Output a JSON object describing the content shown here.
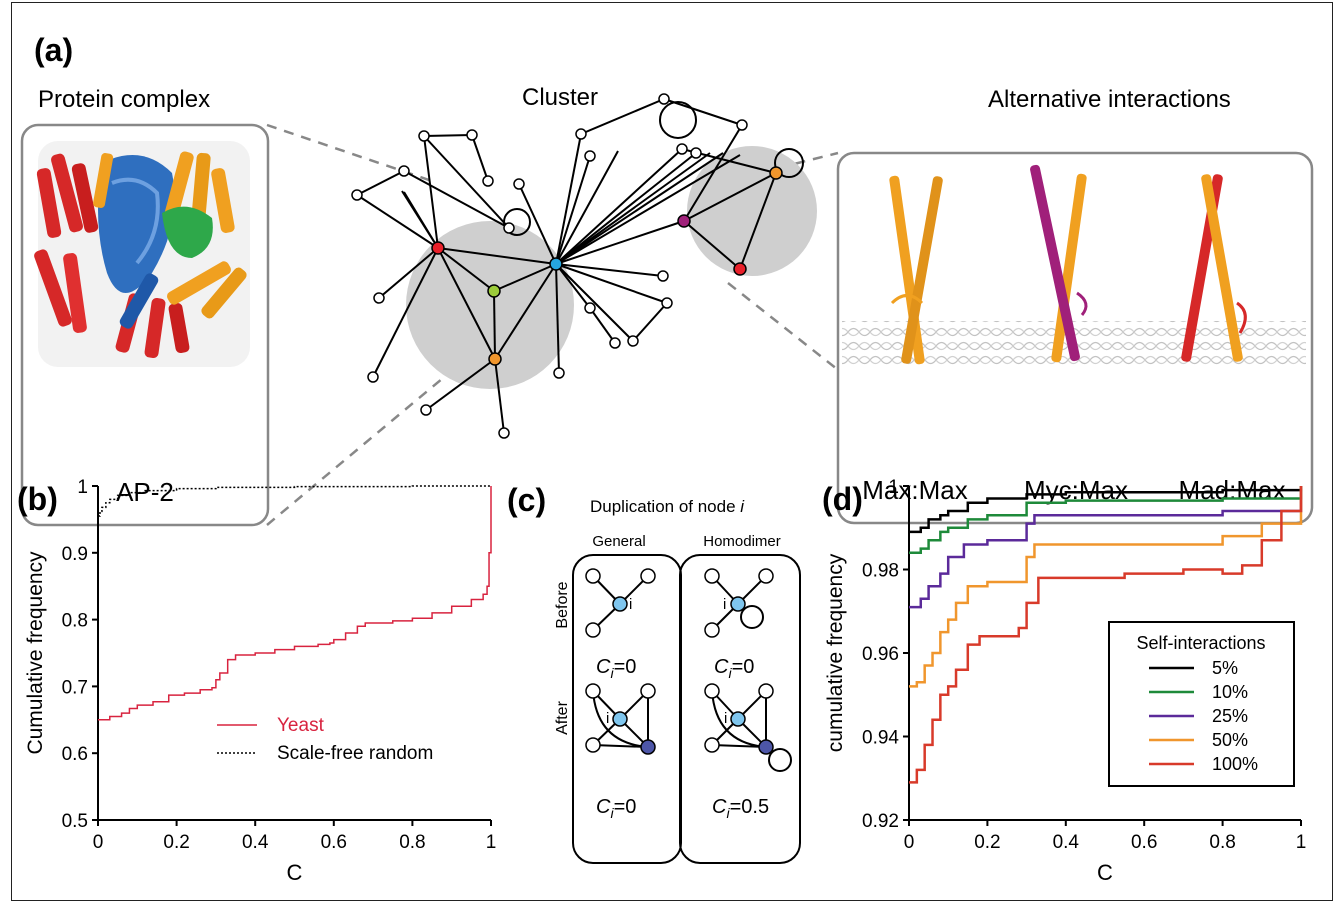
{
  "panel_a": {
    "label": "(a)",
    "left_title": "Protein complex",
    "center_title": "Cluster",
    "right_title": "Alternative interactions",
    "complex_name": "AP-2",
    "alt_labels": [
      "Max:Max",
      "Myc:Max",
      "Mad:Max"
    ]
  },
  "panel_c": {
    "label": "(c)",
    "title": "Duplication of node ",
    "title_var": "i",
    "col_general": "General",
    "col_homodimer": "Homodimer",
    "row_before": "Before",
    "row_after": "After",
    "node_label": "i",
    "c_general_before": "=0",
    "c_homodimer_before": "=0",
    "c_general_after": "=0",
    "c_homodimer_after": "=0.5",
    "c_symbol": "C",
    "c_sub": "i"
  },
  "chart_data": [
    {
      "panel": "(b)",
      "type": "line",
      "xlabel": "C",
      "ylabel": "Cumulative frequency",
      "xlim": [
        0,
        1
      ],
      "ylim": [
        0.5,
        1
      ],
      "xticks": [
        "0",
        "0.2",
        "0.4",
        "0.6",
        "0.8",
        "1"
      ],
      "yticks": [
        "0.5",
        "0.6",
        "0.7",
        "0.8",
        "0.9",
        "1"
      ],
      "legend_position": "bottom-right",
      "series": [
        {
          "name": "Yeast",
          "color": "#d8233f",
          "style": "solid",
          "points": [
            [
              0,
              0.65
            ],
            [
              0.03,
              0.655
            ],
            [
              0.06,
              0.66
            ],
            [
              0.08,
              0.667
            ],
            [
              0.1,
              0.672
            ],
            [
              0.14,
              0.677
            ],
            [
              0.18,
              0.687
            ],
            [
              0.22,
              0.69
            ],
            [
              0.26,
              0.695
            ],
            [
              0.29,
              0.698
            ],
            [
              0.3,
              0.71
            ],
            [
              0.31,
              0.72
            ],
            [
              0.33,
              0.74
            ],
            [
              0.35,
              0.747
            ],
            [
              0.4,
              0.75
            ],
            [
              0.45,
              0.755
            ],
            [
              0.5,
              0.76
            ],
            [
              0.56,
              0.763
            ],
            [
              0.59,
              0.765
            ],
            [
              0.6,
              0.77
            ],
            [
              0.63,
              0.78
            ],
            [
              0.66,
              0.79
            ],
            [
              0.68,
              0.795
            ],
            [
              0.75,
              0.798
            ],
            [
              0.8,
              0.802
            ],
            [
              0.85,
              0.81
            ],
            [
              0.9,
              0.82
            ],
            [
              0.95,
              0.83
            ],
            [
              0.98,
              0.838
            ],
            [
              0.99,
              0.85
            ],
            [
              0.995,
              0.9
            ],
            [
              1.0,
              1.0
            ]
          ]
        },
        {
          "name": "Scale-free random",
          "color": "#000000",
          "style": "dotted",
          "points": [
            [
              0,
              0.955
            ],
            [
              0.005,
              0.962
            ],
            [
              0.01,
              0.968
            ],
            [
              0.02,
              0.975
            ],
            [
              0.03,
              0.98
            ],
            [
              0.05,
              0.986
            ],
            [
              0.08,
              0.99
            ],
            [
              0.12,
              0.993
            ],
            [
              0.2,
              0.996
            ],
            [
              0.3,
              0.998
            ],
            [
              0.5,
              0.999
            ],
            [
              0.8,
              1.0
            ],
            [
              1.0,
              1.0
            ]
          ]
        }
      ]
    },
    {
      "panel": "(d)",
      "type": "line",
      "xlabel": "C",
      "ylabel": "cumulative frequency",
      "xlim": [
        0,
        1
      ],
      "ylim": [
        0.92,
        1
      ],
      "xticks": [
        "0",
        "0.2",
        "0.4",
        "0.6",
        "0.8",
        "1"
      ],
      "yticks": [
        "0.92",
        "0.94",
        "0.96",
        "0.98",
        "1"
      ],
      "legend_title": "Self-interactions",
      "legend_position": "bottom-right",
      "series": [
        {
          "name": "5%",
          "color": "#000000",
          "points": [
            [
              0,
              0.989
            ],
            [
              0.03,
              0.99
            ],
            [
              0.05,
              0.992
            ],
            [
              0.08,
              0.993
            ],
            [
              0.1,
              0.994
            ],
            [
              0.15,
              0.996
            ],
            [
              0.2,
              0.997
            ],
            [
              0.3,
              0.998
            ],
            [
              0.4,
              0.9985
            ],
            [
              0.6,
              0.9985
            ],
            [
              0.8,
              0.999
            ],
            [
              1.0,
              1.0
            ]
          ]
        },
        {
          "name": "10%",
          "color": "#1e8a3a",
          "points": [
            [
              0,
              0.984
            ],
            [
              0.03,
              0.985
            ],
            [
              0.05,
              0.987
            ],
            [
              0.08,
              0.989
            ],
            [
              0.1,
              0.99
            ],
            [
              0.15,
              0.992
            ],
            [
              0.2,
              0.993
            ],
            [
              0.28,
              0.993
            ],
            [
              0.3,
              0.996
            ],
            [
              0.4,
              0.9965
            ],
            [
              0.6,
              0.9965
            ],
            [
              0.8,
              0.997
            ],
            [
              1.0,
              1.0
            ]
          ]
        },
        {
          "name": "25%",
          "color": "#5b2a9a",
          "points": [
            [
              0,
              0.971
            ],
            [
              0.03,
              0.973
            ],
            [
              0.05,
              0.976
            ],
            [
              0.08,
              0.979
            ],
            [
              0.1,
              0.983
            ],
            [
              0.14,
              0.986
            ],
            [
              0.2,
              0.987
            ],
            [
              0.28,
              0.987
            ],
            [
              0.3,
              0.991
            ],
            [
              0.32,
              0.993
            ],
            [
              0.4,
              0.993
            ],
            [
              0.6,
              0.993
            ],
            [
              0.8,
              0.994
            ],
            [
              1.0,
              1.0
            ]
          ]
        },
        {
          "name": "50%",
          "color": "#f0962d",
          "points": [
            [
              0,
              0.952
            ],
            [
              0.02,
              0.953
            ],
            [
              0.04,
              0.957
            ],
            [
              0.06,
              0.96
            ],
            [
              0.08,
              0.965
            ],
            [
              0.1,
              0.968
            ],
            [
              0.12,
              0.972
            ],
            [
              0.15,
              0.976
            ],
            [
              0.2,
              0.977
            ],
            [
              0.28,
              0.977
            ],
            [
              0.3,
              0.983
            ],
            [
              0.32,
              0.986
            ],
            [
              0.4,
              0.986
            ],
            [
              0.6,
              0.986
            ],
            [
              0.8,
              0.988
            ],
            [
              0.9,
              0.991
            ],
            [
              1.0,
              1.0
            ]
          ]
        },
        {
          "name": "100%",
          "color": "#d83a2a",
          "points": [
            [
              0,
              0.929
            ],
            [
              0.02,
              0.932
            ],
            [
              0.04,
              0.938
            ],
            [
              0.06,
              0.944
            ],
            [
              0.08,
              0.95
            ],
            [
              0.1,
              0.952
            ],
            [
              0.12,
              0.956
            ],
            [
              0.15,
              0.962
            ],
            [
              0.18,
              0.964
            ],
            [
              0.25,
              0.964
            ],
            [
              0.28,
              0.966
            ],
            [
              0.3,
              0.972
            ],
            [
              0.33,
              0.978
            ],
            [
              0.4,
              0.978
            ],
            [
              0.55,
              0.979
            ],
            [
              0.7,
              0.98
            ],
            [
              0.8,
              0.979
            ],
            [
              0.85,
              0.981
            ],
            [
              0.9,
              0.987
            ],
            [
              0.95,
              0.994
            ],
            [
              1.0,
              1.0
            ]
          ]
        }
      ]
    }
  ]
}
